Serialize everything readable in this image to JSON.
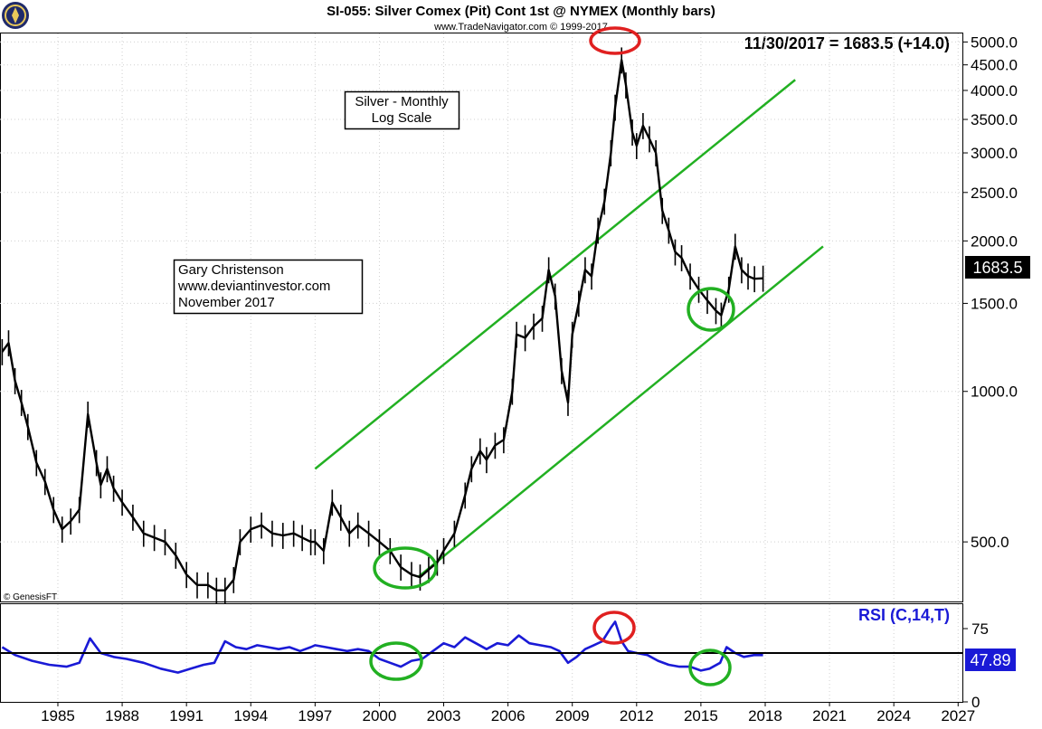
{
  "header": {
    "title": "SI-055:  Silver Comex (Pit) Cont 1st @ NYMEX  (Monthly bars)",
    "subtitle": "www.TradeNavigator.com © 1999-2017",
    "readout": "11/30/2017 = 1683.5 (+14.0)",
    "price_tag": "1683.5",
    "rsi_tag": "47.89",
    "watermark": "© GenesisFT"
  },
  "annotations": {
    "box1": [
      "Silver - Monthly",
      "Log Scale"
    ],
    "box2": [
      "Gary Christenson",
      "www.deviantinvestor.com",
      "November 2017"
    ]
  },
  "colors": {
    "price": "#000000",
    "rsi": "#1a1ad6",
    "channel": "#22b022",
    "circle_green": "#22b022",
    "circle_red": "#e02020",
    "tag_bg": "#000000",
    "rsi_tag_bg": "#1a1ad6"
  },
  "chart_data": [
    {
      "type": "line",
      "scale": "log",
      "title": "SI-055:  Silver Comex (Pit) Cont 1st @ NYMEX  (Monthly bars)",
      "x_ticks": [
        "1985",
        "1988",
        "1991",
        "1994",
        "1997",
        "2000",
        "2003",
        "2006",
        "2009",
        "2012",
        "2015",
        "2018",
        "2021",
        "2024",
        "2027"
      ],
      "y_ticks": [
        "500.0",
        "1000.0",
        "1500.0",
        "2000.0",
        "2500.0",
        "3000.0",
        "3500.0",
        "4000.0",
        "4500.0",
        "5000.0"
      ],
      "ylim": [
        380,
        5200
      ],
      "xlim": [
        1982.3,
        2027.2
      ],
      "series": [
        {
          "x": [
            1982.4,
            1982.7,
            1983.0,
            1983.3,
            1983.6,
            1984.0,
            1984.4,
            1984.8,
            1985.2,
            1985.6,
            1986.0,
            1986.4,
            1986.8,
            1987.0,
            1987.3,
            1987.6,
            1988.0,
            1988.5,
            1989.0,
            1989.5,
            1990.0,
            1990.5,
            1991.0,
            1991.5,
            1992.0,
            1992.4,
            1992.8,
            1993.2,
            1993.5,
            1994.0,
            1994.5,
            1995.0,
            1995.5,
            1996.0,
            1996.4,
            1996.8,
            1997.0,
            1997.4,
            1997.8,
            1998.2,
            1998.6,
            1999.0,
            1999.5,
            2000.0,
            2000.5,
            2001.0,
            2001.5,
            2001.9,
            2002.3,
            2002.7,
            2003.0,
            2003.5,
            2004.0,
            2004.3,
            2004.7,
            2005.0,
            2005.4,
            2005.8,
            2006.2,
            2006.4,
            2006.8,
            2007.2,
            2007.6,
            2007.9,
            2008.2,
            2008.5,
            2008.8,
            2009.0,
            2009.3,
            2009.6,
            2009.9,
            2010.2,
            2010.5,
            2010.8,
            2011.0,
            2011.3,
            2011.5,
            2011.8,
            2012.0,
            2012.3,
            2012.6,
            2012.9,
            2013.2,
            2013.5,
            2013.8,
            2014.1,
            2014.5,
            2014.9,
            2015.3,
            2015.7,
            2015.95,
            2016.3,
            2016.6,
            2016.9,
            2017.2,
            2017.5,
            2017.9
          ],
          "values": [
            1200,
            1250,
            1050,
            950,
            850,
            720,
            660,
            580,
            530,
            550,
            580,
            900,
            720,
            650,
            700,
            640,
            600,
            560,
            520,
            510,
            500,
            470,
            430,
            410,
            410,
            400,
            400,
            420,
            500,
            530,
            540,
            520,
            515,
            520,
            510,
            500,
            500,
            480,
            600,
            560,
            520,
            540,
            520,
            500,
            480,
            445,
            430,
            425,
            440,
            455,
            480,
            520,
            620,
            700,
            760,
            730,
            780,
            800,
            1000,
            1300,
            1280,
            1350,
            1400,
            1750,
            1550,
            1100,
            950,
            1300,
            1500,
            1750,
            1700,
            2100,
            2400,
            3000,
            3700,
            4600,
            4100,
            3300,
            3100,
            3400,
            3200,
            3000,
            2300,
            2100,
            1900,
            1850,
            1700,
            1600,
            1520,
            1450,
            1420,
            1600,
            1950,
            1750,
            1700,
            1680,
            1683.5
          ]
        }
      ],
      "channel_lines": [
        {
          "x": [
            1997.0,
            2019.4
          ],
          "values": [
            700,
            4200
          ]
        },
        {
          "x": [
            2001.8,
            2020.7
          ],
          "values": [
            425,
            1950
          ]
        }
      ]
    },
    {
      "type": "line",
      "title": "RSI (C,14,T)",
      "y_ticks": [
        "0",
        "75"
      ],
      "ylim": [
        0,
        100
      ],
      "reference_level": 50,
      "series": [
        {
          "x": [
            1982.4,
            1983.0,
            1983.8,
            1984.6,
            1985.4,
            1986.0,
            1986.5,
            1987.0,
            1987.6,
            1988.2,
            1989.0,
            1989.8,
            1990.6,
            1991.2,
            1991.8,
            1992.3,
            1992.8,
            1993.3,
            1993.8,
            1994.3,
            1994.8,
            1995.3,
            1995.8,
            1996.3,
            1996.8,
            1997.0,
            1997.5,
            1998.0,
            1998.5,
            1999.0,
            1999.5,
            2000.0,
            2000.5,
            2001.0,
            2001.5,
            2002.0,
            2002.5,
            2003.0,
            2003.5,
            2004.0,
            2004.5,
            2005.0,
            2005.5,
            2006.0,
            2006.5,
            2007.0,
            2007.5,
            2008.0,
            2008.4,
            2008.8,
            2009.2,
            2009.6,
            2010.0,
            2010.4,
            2010.8,
            2011.0,
            2011.3,
            2011.6,
            2012.0,
            2012.5,
            2013.0,
            2013.5,
            2014.0,
            2014.5,
            2015.0,
            2015.4,
            2015.9,
            2016.2,
            2016.6,
            2017.0,
            2017.5,
            2017.9
          ],
          "values": [
            56,
            48,
            42,
            38,
            36,
            40,
            65,
            50,
            46,
            44,
            40,
            34,
            30,
            34,
            38,
            40,
            62,
            56,
            54,
            58,
            56,
            54,
            56,
            52,
            56,
            58,
            56,
            54,
            52,
            54,
            52,
            44,
            40,
            36,
            42,
            44,
            52,
            60,
            56,
            66,
            60,
            54,
            60,
            58,
            68,
            60,
            58,
            56,
            52,
            40,
            46,
            54,
            58,
            62,
            76,
            82,
            62,
            52,
            50,
            48,
            42,
            38,
            36,
            36,
            32,
            34,
            40,
            56,
            50,
            46,
            48,
            47.89
          ]
        }
      ]
    }
  ]
}
